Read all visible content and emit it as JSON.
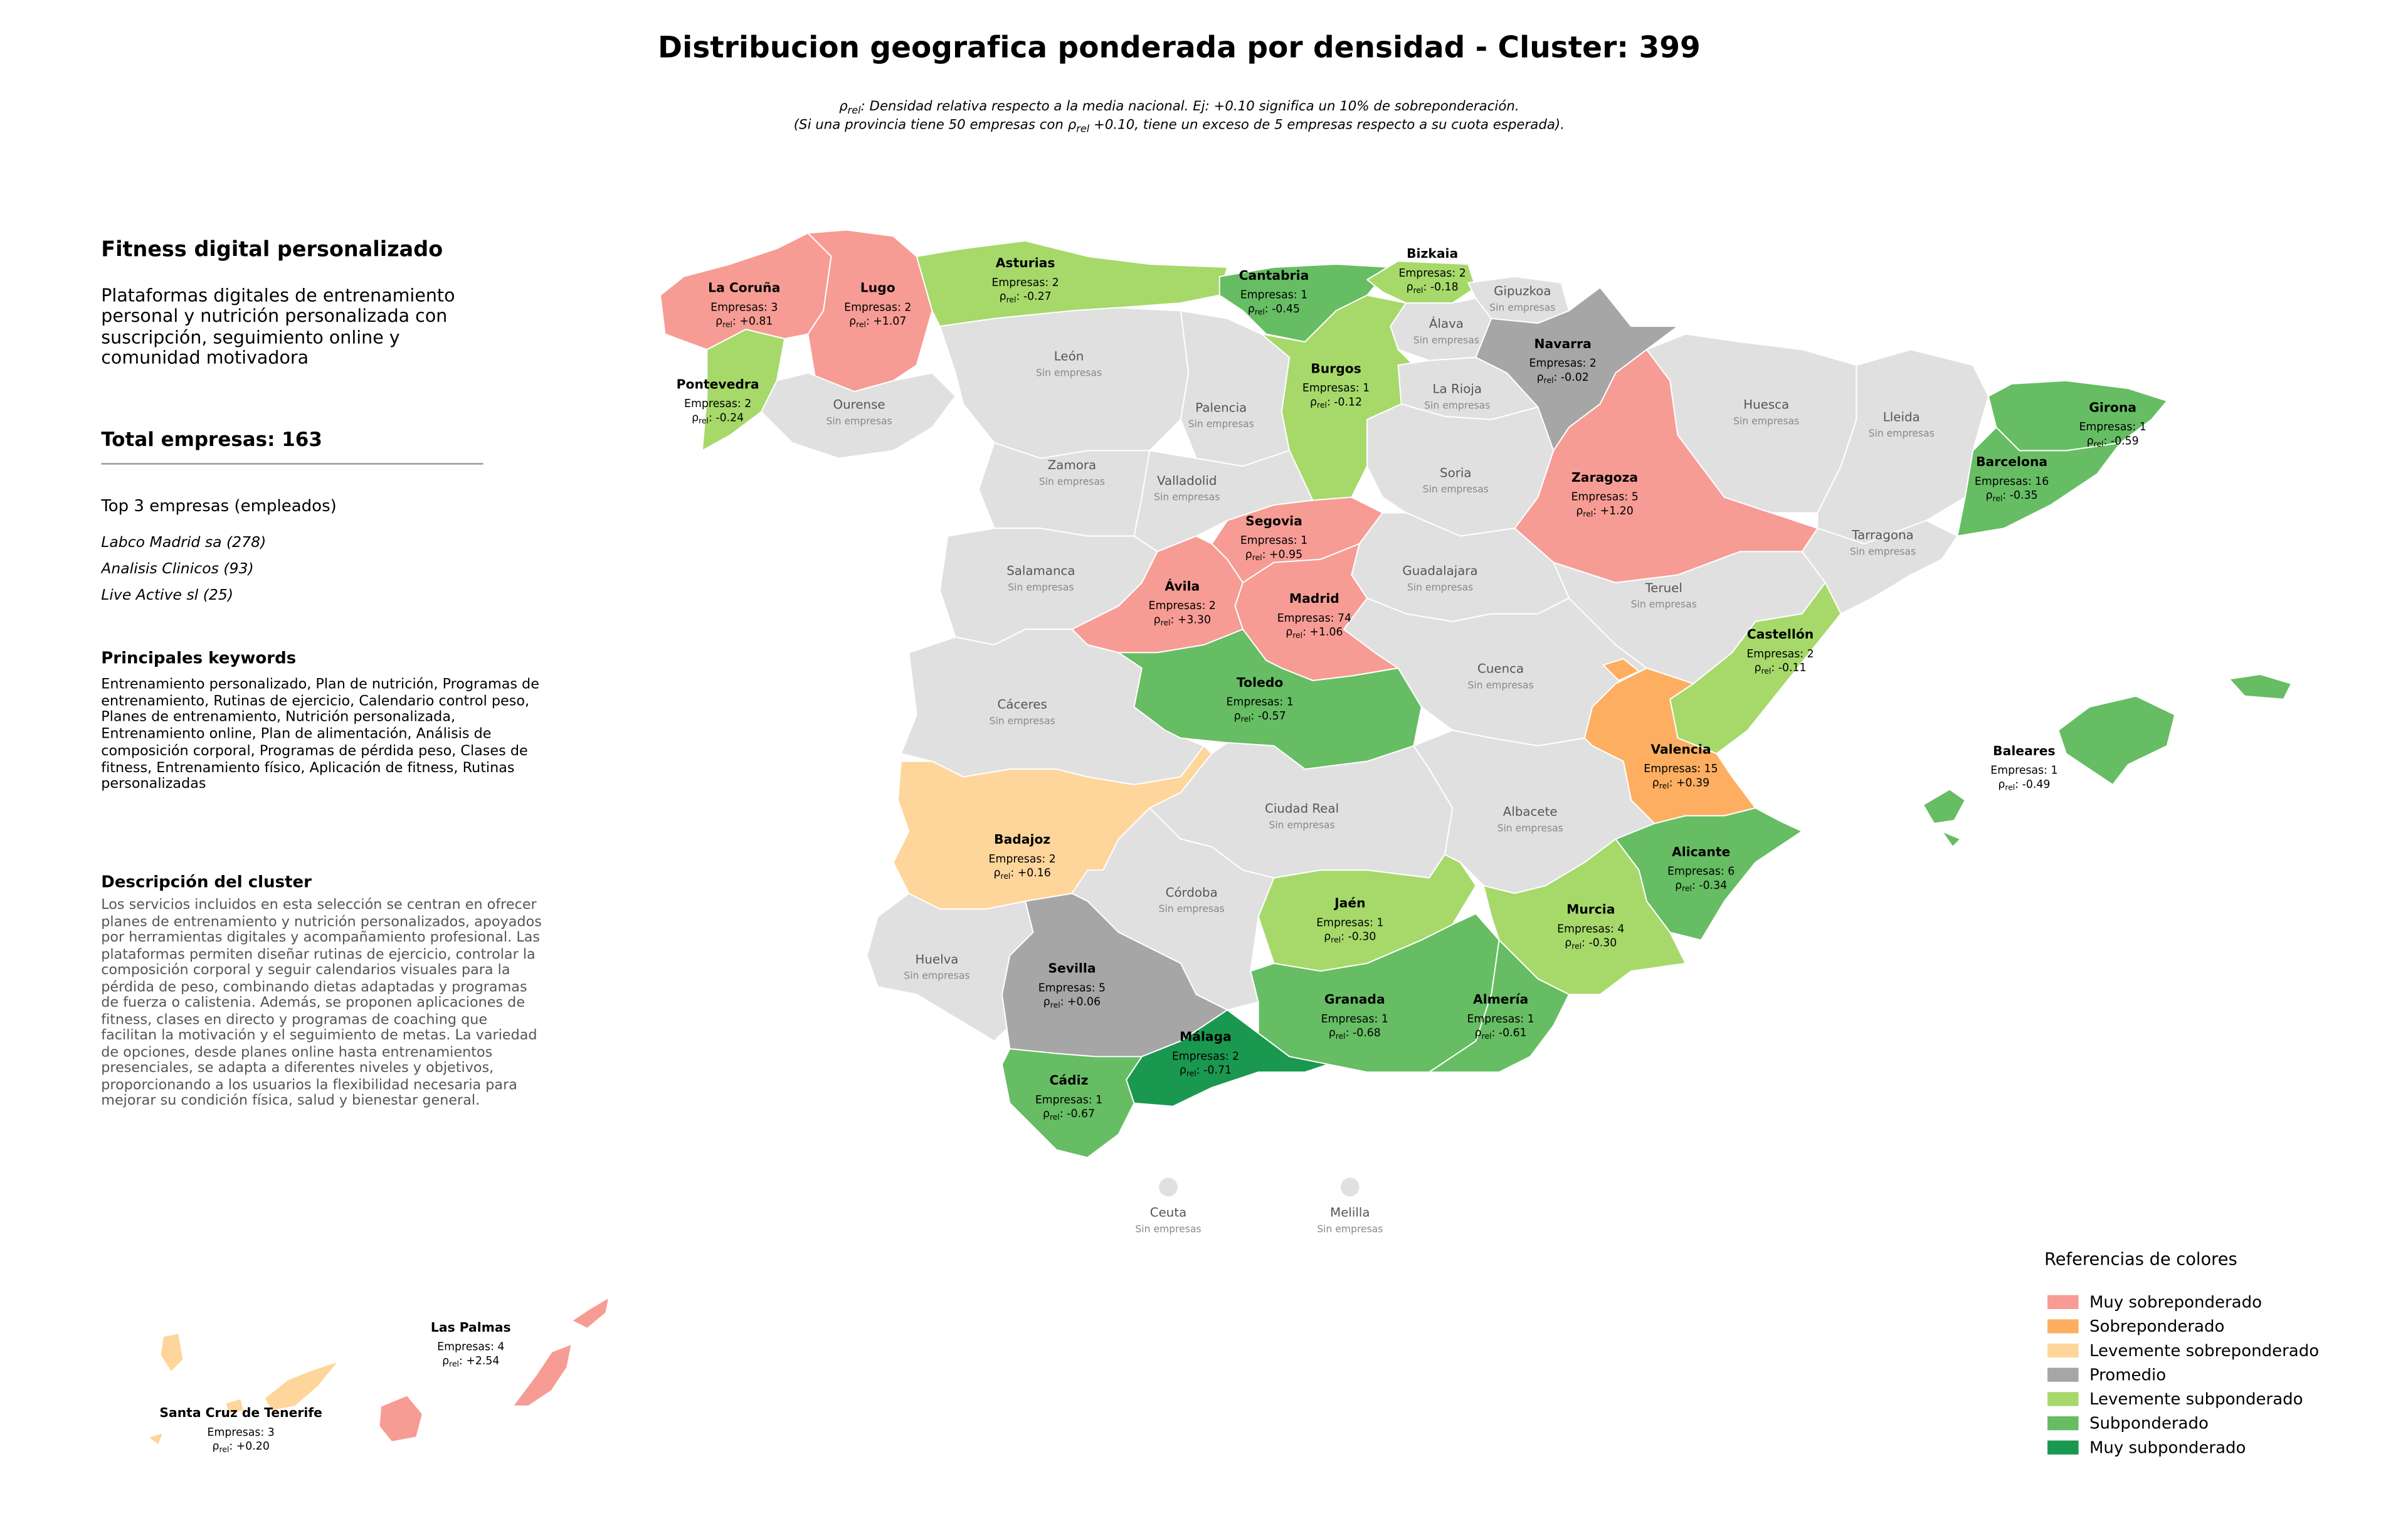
{
  "title": "Distribucion geografica ponderada por densidad - Cluster: 399",
  "rho_label": {
    "symbol": "ρ",
    "subscript": "rel",
    "separator": ": "
  },
  "subtitle": [
    {
      "after": ": Densidad relativa respecto a la media nacional. Ej: +0.10 significa un 10% de sobreponderación."
    },
    {
      "before": "(Si una provincia tiene 50 empresas con ",
      "after": " +0.10, tiene un exceso de 5 empresas respecto a su cuota esperada)."
    }
  ],
  "sidebar": {
    "title": "Fitness digital personalizado",
    "description": "Plataformas digitales de entrenamiento personal y nutrición personalizada con suscripción, seguimiento online y comunidad motivadora",
    "total": "Total empresas: 163",
    "top_heading": "Top 3 empresas (empleados)",
    "top": [
      "Labco Madrid sa (278)",
      "Analisis Clinicos (93)",
      "Live Active sl (25)"
    ],
    "keywords_heading": "Principales keywords",
    "keywords": "Entrenamiento personalizado, Plan de nutrición, Programas de entrenamiento, Rutinas de ejercicio, Calendario control peso, Planes de entrenamiento, Nutrición personalizada, Entrenamiento online, Plan de alimentación, Análisis de composición corporal, Programas de pérdida peso, Clases de fitness, Entrenamiento físico, Aplicación de fitness, Rutinas personalizadas",
    "cluster_heading": "Descripción del cluster",
    "cluster_text": "Los servicios incluidos en esta selección se centran en ofrecer planes de entrenamiento y nutrición personalizados, apoyados por herramientas digitales y acompañamiento profesional. Las plataformas permiten diseñar rutinas de ejercicio, controlar la composición corporal y seguir calendarios visuales para la pérdida de peso, combinando dietas adaptadas y programas de fuerza o calistenia. Además, se proponen aplicaciones de fitness, clases en directo y programas de coaching que facilitan la motivación y el seguimiento de metas. La variedad de opciones, desde planes online hasta entrenamientos presenciales, se adapta a diferentes niveles y objetivos, proporcionando a los usuarios la flexibilidad necesaria para mejorar su condición física, salud y bienestar general."
  },
  "legend": {
    "title": "Referencias de colores",
    "items": [
      {
        "label": "Muy sobreponderado",
        "color": "#f69c94"
      },
      {
        "label": "Sobreponderado",
        "color": "#fdae61"
      },
      {
        "label": "Levemente sobreponderado",
        "color": "#fed59a"
      },
      {
        "label": "Promedio",
        "color": "#a6a6a6"
      },
      {
        "label": "Levemente subponderado",
        "color": "#a6d96a"
      },
      {
        "label": "Subponderado",
        "color": "#66bd63"
      },
      {
        "label": "Muy subponderado",
        "color": "#1a9850"
      }
    ]
  },
  "provinces": [
    {
      "name": "La Coruña",
      "empresas": "Empresas: 3",
      "rho": "+0.81",
      "color": "#f69c94"
    },
    {
      "name": "Lugo",
      "empresas": "Empresas: 2",
      "rho": "+1.07",
      "color": "#f69c94"
    },
    {
      "name": "Pontevedra",
      "empresas": "Empresas: 2",
      "rho": "-0.24",
      "color": "#a6d96a"
    },
    {
      "name": "Ourense",
      "status": "Sin empresas",
      "color": "#e0e0e0"
    },
    {
      "name": "Asturias",
      "empresas": "Empresas: 2",
      "rho": "-0.27",
      "color": "#a6d96a"
    },
    {
      "name": "Cantabria",
      "empresas": "Empresas: 1",
      "rho": "-0.45",
      "color": "#66bd63"
    },
    {
      "name": "Bizkaia",
      "empresas": "Empresas: 2",
      "rho": "-0.18",
      "color": "#a6d96a"
    },
    {
      "name": "Gipuzkoa",
      "status": "Sin empresas",
      "color": "#e0e0e0"
    },
    {
      "name": "Álava",
      "status": "Sin empresas",
      "color": "#e0e0e0"
    },
    {
      "name": "León",
      "status": "Sin empresas",
      "color": "#e0e0e0"
    },
    {
      "name": "Palencia",
      "status": "Sin empresas",
      "color": "#e0e0e0"
    },
    {
      "name": "Burgos",
      "empresas": "Empresas: 1",
      "rho": "-0.12",
      "color": "#a6d96a"
    },
    {
      "name": "La Rioja",
      "status": "Sin empresas",
      "color": "#e0e0e0"
    },
    {
      "name": "Navarra",
      "empresas": "Empresas: 2",
      "rho": "-0.02",
      "color": "#a6a6a6"
    },
    {
      "name": "Soria",
      "status": "Sin empresas",
      "color": "#e0e0e0"
    },
    {
      "name": "Zaragoza",
      "empresas": "Empresas: 5",
      "rho": "+1.20",
      "color": "#f69c94"
    },
    {
      "name": "Huesca",
      "status": "Sin empresas",
      "color": "#e0e0e0"
    },
    {
      "name": "Lleida",
      "status": "Sin empresas",
      "color": "#e0e0e0"
    },
    {
      "name": "Girona",
      "empresas": "Empresas: 1",
      "rho": "-0.59",
      "color": "#66bd63"
    },
    {
      "name": "Barcelona",
      "empresas": "Empresas: 16",
      "rho": "-0.35",
      "color": "#66bd63"
    },
    {
      "name": "Tarragona",
      "status": "Sin empresas",
      "color": "#e0e0e0"
    },
    {
      "name": "Teruel",
      "status": "Sin empresas",
      "color": "#e0e0e0"
    },
    {
      "name": "Castellón",
      "empresas": "Empresas: 2",
      "rho": "-0.11",
      "color": "#a6d96a"
    },
    {
      "name": "Zamora",
      "status": "Sin empresas",
      "color": "#e0e0e0"
    },
    {
      "name": "Valladolid",
      "status": "Sin empresas",
      "color": "#e0e0e0"
    },
    {
      "name": "Segovia",
      "empresas": "Empresas: 1",
      "rho": "+0.95",
      "color": "#f69c94"
    },
    {
      "name": "Guadalajara",
      "status": "Sin empresas",
      "color": "#e0e0e0"
    },
    {
      "name": "Salamanca",
      "status": "Sin empresas",
      "color": "#e0e0e0"
    },
    {
      "name": "Ávila",
      "empresas": "Empresas: 2",
      "rho": "+3.30",
      "color": "#f69c94"
    },
    {
      "name": "Madrid",
      "empresas": "Empresas: 74",
      "rho": "+1.06",
      "color": "#f69c94"
    },
    {
      "name": "Cuenca",
      "status": "Sin empresas",
      "color": "#e0e0e0"
    },
    {
      "name": "Valencia",
      "empresas": "Empresas: 15",
      "rho": "+0.39",
      "color": "#fdae61"
    },
    {
      "name": "Cáceres",
      "status": "Sin empresas",
      "color": "#e0e0e0"
    },
    {
      "name": "Toledo",
      "empresas": "Empresas: 1",
      "rho": "-0.57",
      "color": "#66bd63"
    },
    {
      "name": "Badajoz",
      "empresas": "Empresas: 2",
      "rho": "+0.16",
      "color": "#fed59a"
    },
    {
      "name": "Ciudad Real",
      "status": "Sin empresas",
      "color": "#e0e0e0"
    },
    {
      "name": "Albacete",
      "status": "Sin empresas",
      "color": "#e0e0e0"
    },
    {
      "name": "Alicante",
      "empresas": "Empresas: 6",
      "rho": "-0.34",
      "color": "#66bd63"
    },
    {
      "name": "Murcia",
      "empresas": "Empresas: 4",
      "rho": "-0.30",
      "color": "#a6d96a"
    },
    {
      "name": "Huelva",
      "status": "Sin empresas",
      "color": "#e0e0e0"
    },
    {
      "name": "Córdoba",
      "status": "Sin empresas",
      "color": "#e0e0e0"
    },
    {
      "name": "Sevilla",
      "empresas": "Empresas: 5",
      "rho": "+0.06",
      "color": "#a6a6a6"
    },
    {
      "name": "Jaén",
      "empresas": "Empresas: 1",
      "rho": "-0.30",
      "color": "#a6d96a"
    },
    {
      "name": "Granada",
      "empresas": "Empresas: 1",
      "rho": "-0.68",
      "color": "#66bd63"
    },
    {
      "name": "Almería",
      "empresas": "Empresas: 1",
      "rho": "-0.61",
      "color": "#66bd63"
    },
    {
      "name": "Málaga",
      "empresas": "Empresas: 2",
      "rho": "-0.71",
      "color": "#1a9850"
    },
    {
      "name": "Cádiz",
      "empresas": "Empresas: 1",
      "rho": "-0.67",
      "color": "#66bd63"
    },
    {
      "name": "Baleares",
      "empresas": "Empresas: 1",
      "rho": "-0.49",
      "color": "#66bd63"
    },
    {
      "name": "Las Palmas",
      "empresas": "Empresas: 4",
      "rho": "+2.54",
      "color": "#f69c94"
    },
    {
      "name": "Santa Cruz de Tenerife",
      "empresas": "Empresas: 3",
      "rho": "+0.20",
      "color": "#fed59a"
    },
    {
      "name": "Ceuta",
      "status": "Sin empresas",
      "color": "#e0e0e0"
    },
    {
      "name": "Melilla",
      "status": "Sin empresas",
      "color": "#e0e0e0"
    }
  ]
}
